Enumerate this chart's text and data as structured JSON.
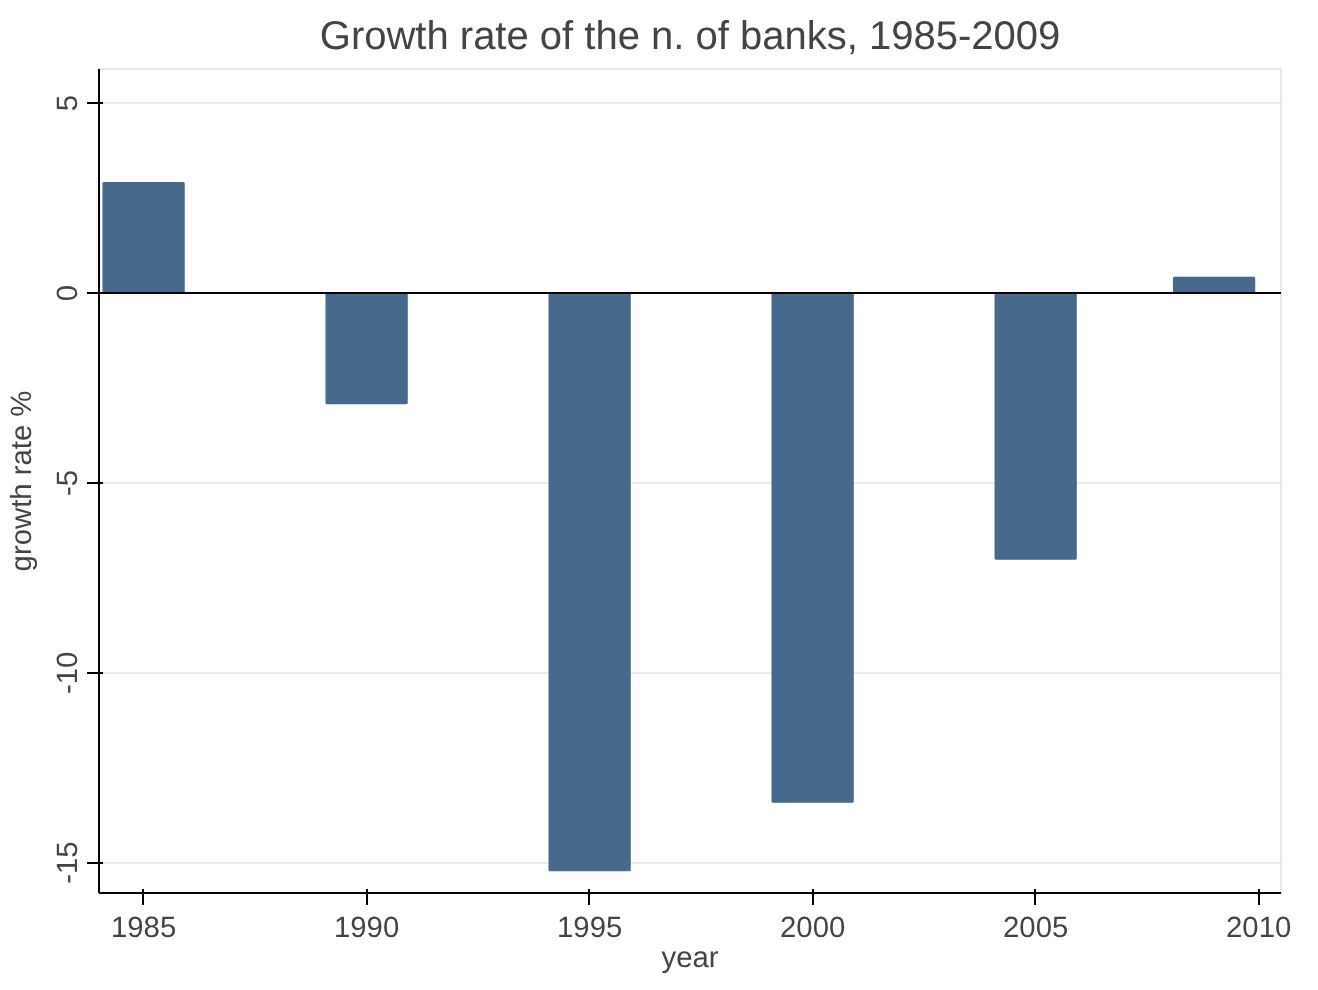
{
  "chart_data": {
    "type": "bar",
    "title": "Growth rate of the n. of banks, 1985-2009",
    "xlabel": "year",
    "ylabel": "growth rate %",
    "x": [
      1985,
      1990,
      1995,
      2000,
      2005,
      2009
    ],
    "values": [
      2.9,
      -2.9,
      -15.2,
      -13.4,
      -7.0,
      0.4
    ],
    "color": "#46698c",
    "xlim": [
      1984,
      2010.5
    ],
    "xticks": [
      1985,
      1990,
      1995,
      2000,
      2005,
      2010
    ],
    "ylim": [
      -15.8,
      5.9
    ],
    "yticks": [
      -15,
      -10,
      -5,
      0,
      5
    ],
    "ref_lines": [
      {
        "axis": "y",
        "value": 0,
        "label": null,
        "color": "#000000"
      }
    ],
    "grid": "y"
  }
}
